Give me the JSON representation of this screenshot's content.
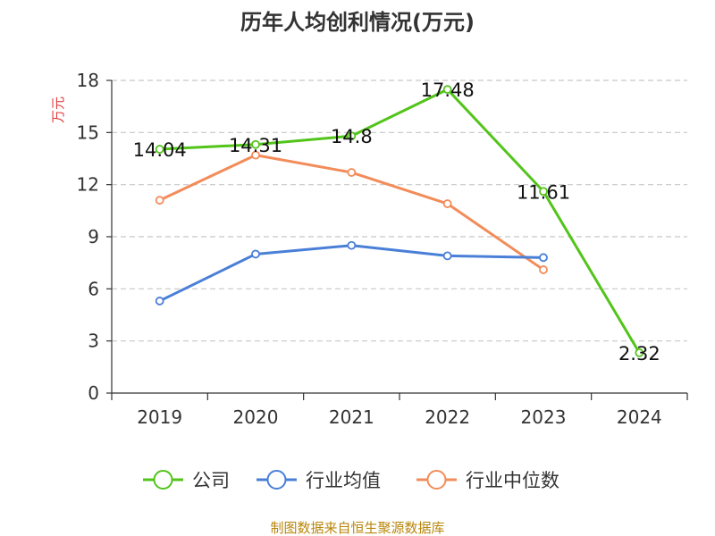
{
  "chart_data": {
    "type": "line",
    "title": "历年人均创利情况(万元)",
    "ylabel": "万元",
    "xlabel": "",
    "ylim": [
      0,
      18
    ],
    "yticks": [
      0,
      3,
      6,
      9,
      12,
      15,
      18
    ],
    "categories": [
      "2019",
      "2020",
      "2021",
      "2022",
      "2023",
      "2024"
    ],
    "grid": true,
    "legend_position": "bottom",
    "series": [
      {
        "name": "公司",
        "color": "#52c41a",
        "values": [
          14.04,
          14.31,
          14.8,
          17.48,
          11.61,
          2.32
        ],
        "labels": [
          "14.04",
          "14.31",
          "14.8",
          "17.48",
          "11.61",
          "2.32"
        ]
      },
      {
        "name": "行业均值",
        "color": "#4a7fd8",
        "values": [
          5.3,
          8.0,
          8.5,
          7.9,
          7.8,
          null
        ]
      },
      {
        "name": "行业中位数",
        "color": "#f28c5a",
        "values": [
          11.1,
          13.7,
          12.7,
          10.9,
          7.1,
          null
        ]
      }
    ]
  },
  "source": "制图数据来自恒生聚源数据库"
}
